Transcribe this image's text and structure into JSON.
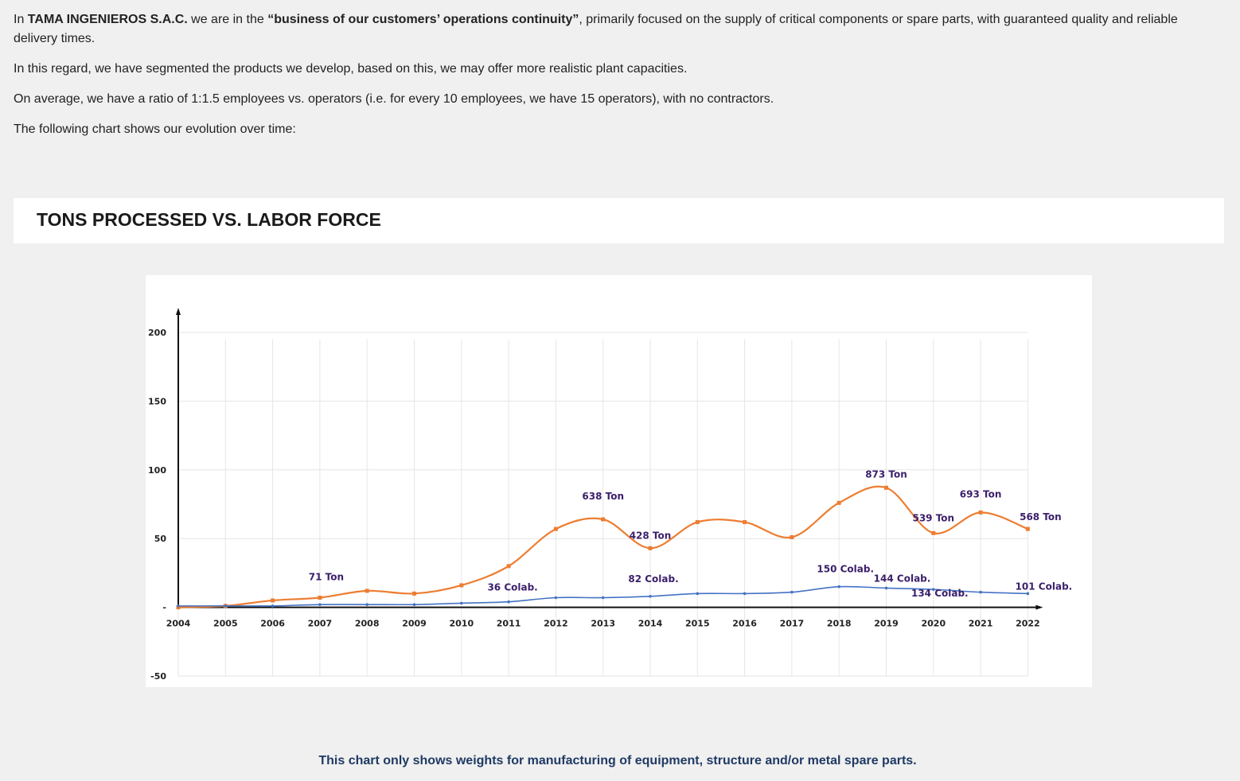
{
  "intro": {
    "p1_a": "In ",
    "p1_company": "TAMA INGENIEROS S.A.C.",
    "p1_b": " we are in the ",
    "p1_quote": "“business of our customers’ operations continuity”",
    "p1_c": ", primarily focused on the supply of critical components or spare parts, with guaranteed quality and reliable delivery times.",
    "p2": "In this regard, we have segmented the products we develop, based on this, we may offer more realistic plant capacities.",
    "p3": "On average, we have a ratio of 1:1.5 employees vs. operators (i.e. for every 10 employees, we have 15 operators), with no contractors.",
    "p4": "The following chart shows our evolution over time:"
  },
  "section_title": "TONS PROCESSED VS. LABOR FORCE",
  "footnote": "This chart only shows weights for manufacturing of equipment, structure and/or metal spare parts.",
  "colors": {
    "tons": "#ed7d31",
    "labor": "#4472c4",
    "label": "#3b1f6b"
  },
  "chart_data": {
    "type": "line",
    "title": "",
    "xlabel": "",
    "ylabel": "",
    "ylim": [
      -50,
      200
    ],
    "yticks": [
      {
        "value": 200,
        "label": "200"
      },
      {
        "value": 150,
        "label": "150"
      },
      {
        "value": 100,
        "label": "100"
      },
      {
        "value": 50,
        "label": "50"
      },
      {
        "value": 0,
        "label": "-"
      },
      {
        "value": -50,
        "label": "-50"
      }
    ],
    "grid": true,
    "x": [
      "2004",
      "2005",
      "2006",
      "2007",
      "2008",
      "2009",
      "2010",
      "2011",
      "2012",
      "2013",
      "2014",
      "2015",
      "2016",
      "2017",
      "2018",
      "2019",
      "2020",
      "2021",
      "2022"
    ],
    "series": [
      {
        "color": "#ed7d31",
        "values": [
          0,
          1,
          5,
          7,
          12,
          10,
          16,
          30,
          57,
          64,
          43,
          62,
          62,
          51,
          76,
          87,
          54,
          69,
          57
        ]
      },
      {
        "color": "#4472c4",
        "values": [
          1,
          1,
          1,
          2,
          2,
          2,
          3,
          4,
          7,
          7,
          8,
          10,
          10,
          11,
          15,
          14,
          13,
          11,
          10
        ]
      }
    ],
    "annotations": [
      {
        "x": "2007",
        "text": "71 Ton"
      },
      {
        "x": "2011",
        "text": "36 Colab."
      },
      {
        "x": "2013",
        "text": "638 Ton"
      },
      {
        "x": "2014",
        "text": "82 Colab."
      },
      {
        "x": "2014",
        "text": "428 Ton"
      },
      {
        "x": "2018",
        "text": "150 Colab."
      },
      {
        "x": "2019",
        "text": "873 Ton"
      },
      {
        "x": "2019",
        "text": "144 Colab."
      },
      {
        "x": "2020",
        "text": "539 Ton"
      },
      {
        "x": "2020",
        "text": "134 Colab."
      },
      {
        "x": "2021",
        "text": "693 Ton"
      },
      {
        "x": "2022",
        "text": "568 Ton"
      },
      {
        "x": "2022",
        "text": "101 Colab."
      }
    ]
  }
}
